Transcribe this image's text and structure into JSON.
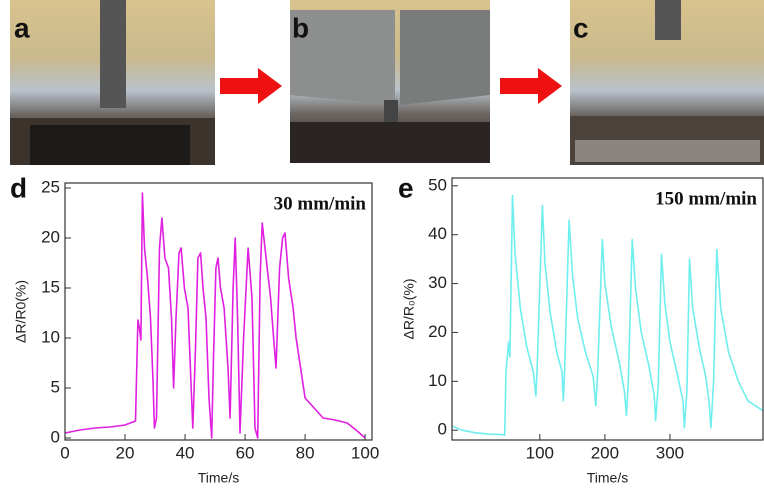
{
  "photos": [
    {
      "label": "a"
    },
    {
      "label": "b"
    },
    {
      "label": "c"
    }
  ],
  "chart_data": [
    {
      "type": "line",
      "panel_label": "d",
      "title": "30 mm/min",
      "xlabel": "Time/s",
      "ylabel": "ΔR/R0(%)",
      "color": "#e020e0",
      "x": [
        0,
        5,
        10,
        15,
        20,
        23.5,
        24.3,
        24.8,
        25.3,
        25.8,
        26.5,
        27.5,
        28.5,
        29.3,
        29.8,
        30.5,
        31.5,
        32.3,
        33.3,
        34.5,
        35.5,
        36.2,
        37,
        38,
        38.7,
        39.8,
        41,
        41.8,
        42.6,
        43.5,
        44.3,
        45.2,
        46,
        47,
        48,
        48.9,
        49.5,
        50.3,
        51,
        51.8,
        53,
        54.3,
        55,
        56,
        56.7,
        57.5,
        58.3,
        59.5,
        61,
        62.3,
        63.3,
        64.2,
        65,
        65.7,
        67,
        68.5,
        69.5,
        70.3,
        71.5,
        72.5,
        73.3,
        74.5,
        76,
        77,
        78,
        80,
        83,
        86,
        90,
        94,
        97,
        100
      ],
      "values": [
        0.5,
        0.8,
        1,
        1.1,
        1.3,
        1.7,
        11.8,
        11,
        9.8,
        24.5,
        19,
        16,
        12,
        6,
        1,
        2,
        19,
        22,
        18,
        17,
        12,
        5,
        12,
        18.5,
        19,
        15,
        13,
        7,
        1,
        9,
        18,
        18.5,
        15,
        12,
        4,
        0,
        8,
        17,
        18,
        15,
        13,
        7,
        2,
        15,
        20,
        12,
        0.5,
        10,
        19,
        14,
        1,
        0,
        16,
        21.5,
        18,
        14,
        10,
        7,
        17,
        20,
        20.5,
        16,
        13,
        10,
        8,
        4,
        3,
        2,
        1.8,
        1.5,
        0.8,
        0
      ],
      "xlim": [
        0,
        102.3
      ],
      "ylim": [
        -0.2,
        25.5
      ],
      "xticks": [
        0,
        20,
        40,
        60,
        80,
        100
      ],
      "yticks": [
        0,
        5,
        10,
        15,
        20,
        25
      ]
    },
    {
      "type": "line",
      "panel_label": "e",
      "title": "150 mm/min",
      "xlabel": "Time/s",
      "ylabel": "ΔR/R₀(%)",
      "color": "#70eeee",
      "x": [
        -34,
        -20,
        0,
        20,
        40,
        46,
        48,
        52,
        54,
        58,
        62,
        70,
        80,
        90,
        94,
        96,
        104,
        108,
        116,
        126,
        134,
        136,
        138,
        145,
        150,
        158,
        170,
        182,
        186,
        189,
        196,
        200,
        210,
        222,
        230,
        233,
        236,
        242,
        247,
        256,
        268,
        276,
        278,
        282,
        287,
        292,
        300,
        312,
        320,
        322,
        326,
        330,
        335,
        345,
        355,
        360,
        363,
        367,
        372,
        378,
        390,
        405,
        420,
        443
      ],
      "values": [
        0.8,
        0,
        -0.5,
        -0.8,
        -0.9,
        -1,
        12,
        18,
        15,
        48,
        36,
        25,
        17,
        12,
        7,
        13,
        46,
        34,
        24,
        16,
        12,
        6,
        12,
        43,
        32,
        23,
        16,
        11,
        5,
        12,
        39,
        30,
        21,
        14,
        8,
        3,
        10,
        39,
        29,
        20,
        13,
        7,
        2,
        9,
        36,
        26,
        18,
        11,
        6,
        0.5,
        8,
        35,
        25,
        17,
        11,
        6,
        0.5,
        10,
        37,
        25,
        16,
        10,
        6,
        4
      ],
      "xlim": [
        -35,
        443
      ],
      "ylim": [
        -2,
        51.6
      ],
      "xticks": [
        100,
        200,
        300
      ],
      "yticks": [
        0,
        10,
        20,
        30,
        40,
        50
      ]
    }
  ]
}
